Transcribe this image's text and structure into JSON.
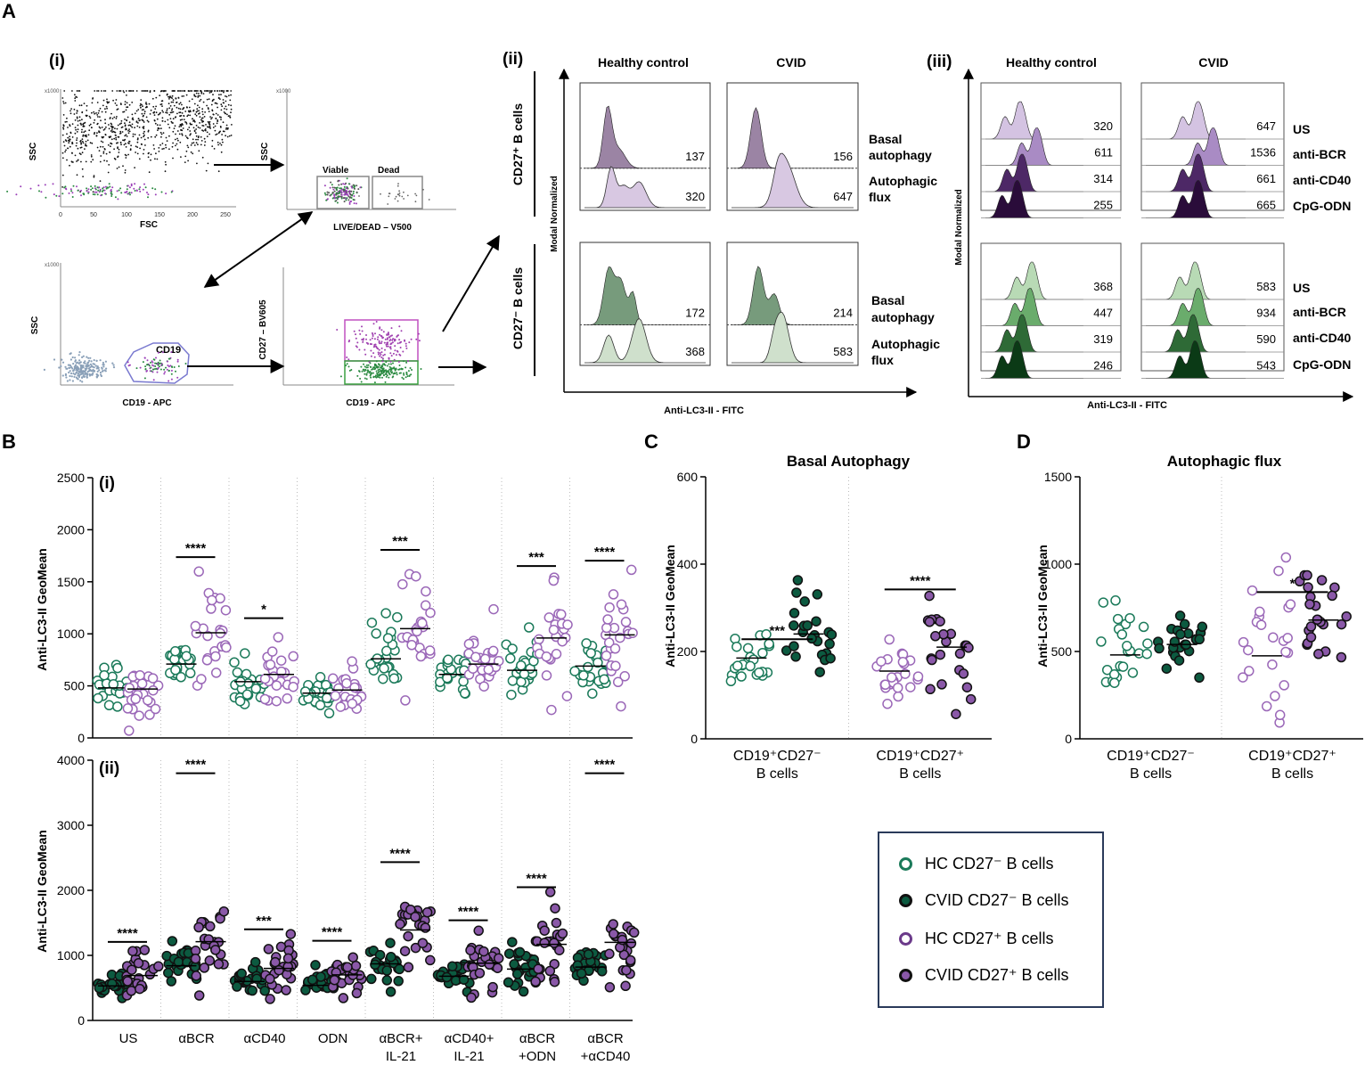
{
  "colors": {
    "hc_neg": "#1b7a5a",
    "cvid_neg": "#0c5a40",
    "hc_pos": "#9b68b8",
    "cvid_pos": "#7b4a9a",
    "hc_pos_fill": "#8a58a8",
    "axis": "#000000"
  },
  "panelA": {
    "label": "A",
    "i": {
      "label": "(i)",
      "plot1": {
        "ylabel": "SSC",
        "xlabel": "FSC",
        "scale": "x1000",
        "xticks": [
          "0",
          "50",
          "100",
          "150",
          "200",
          "250"
        ],
        "xscale": "x1000"
      },
      "plot2": {
        "ylabel": "SSC",
        "xlabel": "LIVE/DEAD – V500",
        "scale": "x1000",
        "gate_viable": "Viable",
        "gate_dead": "Dead"
      },
      "plot3": {
        "ylabel": "SSC",
        "xlabel": "CD19 - APC",
        "gate": "CD19",
        "scale": "x1000"
      },
      "plot4": {
        "ylabel": "CD27 – BV605",
        "xlabel": "CD19 - APC"
      }
    },
    "ii": {
      "label": "(ii)",
      "col_headers": [
        "Healthy control",
        "CVID"
      ],
      "ylabel": "Modal Normalized",
      "xlabel": "Anti-LC3-II - FITC",
      "row_top_label": "CD27⁺ B cells",
      "row_bottom_label": "CD27⁻ B cells",
      "row_labels": [
        "Basal autophagy",
        "Autophagic flux"
      ],
      "basal_line1": "Basal",
      "basal_line2": "autophagy",
      "flux_line1": "Autophagic",
      "flux_line2": "flux",
      "top_hc": [
        "137",
        "320"
      ],
      "top_cvid": [
        "156",
        "647"
      ],
      "bottom_hc": [
        "172",
        "368"
      ],
      "bottom_cvid": [
        "214",
        "583"
      ]
    },
    "iii": {
      "label": "(iii)",
      "col_headers": [
        "Healthy control",
        "CVID"
      ],
      "ylabel": "Modal Normalized",
      "xlabel": "Anti-LC3-II - FITC",
      "conditions": [
        "US",
        "anti-BCR",
        "anti-CD40",
        "CpG-ODN"
      ],
      "top_hc": [
        "320",
        "611",
        "314",
        "255"
      ],
      "top_cvid": [
        "647",
        "1536",
        "661",
        "665"
      ],
      "bottom_hc": [
        "368",
        "447",
        "319",
        "246"
      ],
      "bottom_cvid": [
        "583",
        "934",
        "590",
        "543"
      ]
    }
  },
  "panelB": {
    "label": "B",
    "sub_i": "(i)",
    "sub_ii": "(ii)",
    "ylabel": "Anti-LC3-II GeoMean",
    "xlabels": [
      [
        "US",
        ""
      ],
      [
        "αBCR",
        ""
      ],
      [
        "αCD40",
        ""
      ],
      [
        "ODN",
        ""
      ],
      [
        "αBCR+",
        "IL-21"
      ],
      [
        "αCD40+",
        "IL-21"
      ],
      [
        "αBCR",
        "+ODN"
      ],
      [
        "αBCR",
        "+αCD40"
      ]
    ]
  },
  "panelC": {
    "label": "C",
    "title": "Basal Autophagy"
  },
  "panelD": {
    "label": "D",
    "title": "Autophagic flux"
  },
  "legend": {
    "items": [
      {
        "label": "HC CD27⁻ B cells"
      },
      {
        "label": "CVID CD27⁻ B cells"
      },
      {
        "label": "HC CD27⁺ B cells"
      },
      {
        "label": "CVID CD27⁺ B cells"
      }
    ]
  },
  "chart_data": [
    {
      "id": "B_i",
      "type": "scatter",
      "title": "",
      "ylabel": "Anti-LC3-II GeoMean",
      "ylim": [
        0,
        2500
      ],
      "yticks": [
        0,
        500,
        1000,
        1500,
        2000,
        2500
      ],
      "categories": [
        "US",
        "αBCR",
        "αCD40",
        "ODN",
        "αBCR+IL-21",
        "αCD40+IL-21",
        "αBCR+ODN",
        "αBCR+αCD40"
      ],
      "series": [
        {
          "name": "HC CD27⁻ B cells",
          "medians": [
            480,
            710,
            540,
            430,
            760,
            610,
            650,
            690
          ]
        },
        {
          "name": "HC CD27⁺ B cells",
          "medians": [
            470,
            1010,
            610,
            460,
            1050,
            710,
            960,
            990
          ]
        }
      ],
      "significance": [
        "",
        "****",
        "*",
        "",
        "***",
        "",
        "***",
        "****"
      ]
    },
    {
      "id": "B_ii",
      "type": "scatter",
      "title": "",
      "ylabel": "Anti-LC3-II GeoMean",
      "ylim": [
        0,
        4000
      ],
      "yticks": [
        0,
        1000,
        2000,
        3000,
        4000
      ],
      "categories": [
        "US",
        "αBCR",
        "αCD40",
        "ODN",
        "αBCR+IL-21",
        "αCD40+IL-21",
        "αBCR+ODN",
        "αBCR+αCD40"
      ],
      "series": [
        {
          "name": "CVID CD27⁻ B cells",
          "medians": [
            530,
            840,
            600,
            540,
            870,
            680,
            790,
            820
          ]
        },
        {
          "name": "CVID CD27⁺ B cells",
          "medians": [
            690,
            1210,
            800,
            700,
            1390,
            880,
            1170,
            1200
          ]
        }
      ],
      "significance": [
        "****",
        "****",
        "***",
        "****",
        "****",
        "****",
        "****",
        "****"
      ]
    },
    {
      "id": "C",
      "type": "scatter",
      "title": "Basal Autophagy",
      "ylabel": "Anti-LC3-II GeoMean",
      "ylim": [
        0,
        600
      ],
      "yticks": [
        0,
        200,
        400,
        600
      ],
      "categories": [
        "CD19⁺CD27⁻ B cells",
        "CD19⁺CD27⁺ B cells"
      ],
      "series": [
        {
          "name": "HC CD27⁻ B cells",
          "median": 185
        },
        {
          "name": "CVID CD27⁻ B cells",
          "median": 240
        },
        {
          "name": "HC CD27⁺ B cells",
          "median": 155
        },
        {
          "name": "CVID CD27⁺ B cells",
          "median": 210
        }
      ],
      "significance": [
        "***",
        "****"
      ]
    },
    {
      "id": "D",
      "type": "scatter",
      "title": "Autophagic flux",
      "ylabel": "Anti-LC3-II GeoMean",
      "ylim": [
        0,
        1500
      ],
      "yticks": [
        0,
        500,
        1000,
        1500
      ],
      "categories": [
        "CD19⁺CD27⁻ B cells",
        "CD19⁺CD27⁺ B cells"
      ],
      "series": [
        {
          "name": "HC CD27⁻ B cells",
          "median": 480
        },
        {
          "name": "CVID CD27⁻ B cells",
          "median": 540
        },
        {
          "name": "HC CD27⁺ B cells",
          "median": 475
        },
        {
          "name": "CVID CD27⁺ B cells",
          "median": 680
        }
      ],
      "significance": [
        "",
        "*"
      ]
    }
  ]
}
